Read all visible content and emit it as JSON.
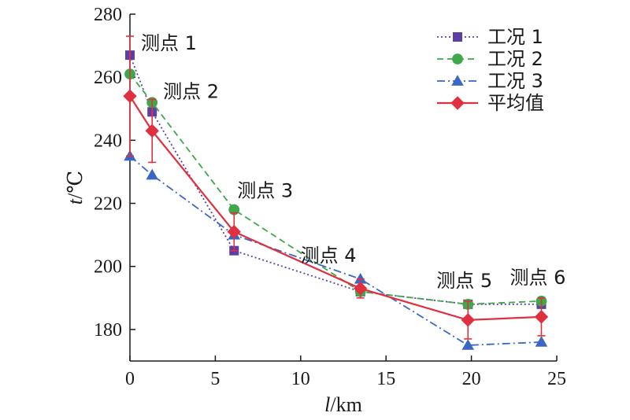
{
  "chart_data": {
    "type": "line",
    "xlabel_var": "l",
    "xlabel_unit": "/km",
    "ylabel_var": "t",
    "ylabel_unit": "/℃",
    "xlim": [
      0,
      25
    ],
    "ylim": [
      170,
      280
    ],
    "xticks": [
      0,
      5,
      10,
      15,
      20,
      25
    ],
    "yticks": [
      180,
      200,
      220,
      240,
      260,
      280
    ],
    "grid": false,
    "legend_position": "top-right",
    "series": [
      {
        "name": "工况 1",
        "color": "#5b3fa6",
        "marker": "square",
        "line_style": "dotted",
        "x": [
          0,
          1.3,
          6.1,
          13.5,
          19.8,
          24.1
        ],
        "y": [
          267,
          249,
          205,
          192,
          188,
          188
        ]
      },
      {
        "name": "工况 2",
        "color": "#3fa84a",
        "marker": "circle",
        "line_style": "dashed",
        "x": [
          0,
          1.3,
          6.1,
          13.5,
          19.8,
          24.1
        ],
        "y": [
          261,
          252,
          218,
          192,
          188,
          189
        ]
      },
      {
        "name": "工况 3",
        "color": "#3a66c4",
        "marker": "triangle",
        "line_style": "dashdot",
        "x": [
          0,
          1.3,
          6.1,
          13.5,
          19.8,
          24.1
        ],
        "y": [
          235,
          229,
          210,
          196,
          175,
          176
        ]
      },
      {
        "name": "平均值",
        "color": "#e03040",
        "marker": "diamond",
        "line_style": "solid",
        "x": [
          0,
          1.3,
          6.1,
          13.5,
          19.8,
          24.1
        ],
        "y": [
          254,
          243,
          211,
          193,
          183,
          184
        ],
        "error": [
          19,
          10,
          6,
          3,
          6,
          6
        ]
      }
    ],
    "annotations": [
      {
        "text": "测点 1",
        "x": 0,
        "y": 267
      },
      {
        "text": "测点 2",
        "x": 1.3,
        "y": 252
      },
      {
        "text": "测点 3",
        "x": 6.1,
        "y": 218
      },
      {
        "text": "测点 4",
        "x": 13.5,
        "y": 196
      },
      {
        "text": "测点 5",
        "x": 19.8,
        "y": 188
      },
      {
        "text": "测点 6",
        "x": 24.1,
        "y": 189
      }
    ]
  }
}
